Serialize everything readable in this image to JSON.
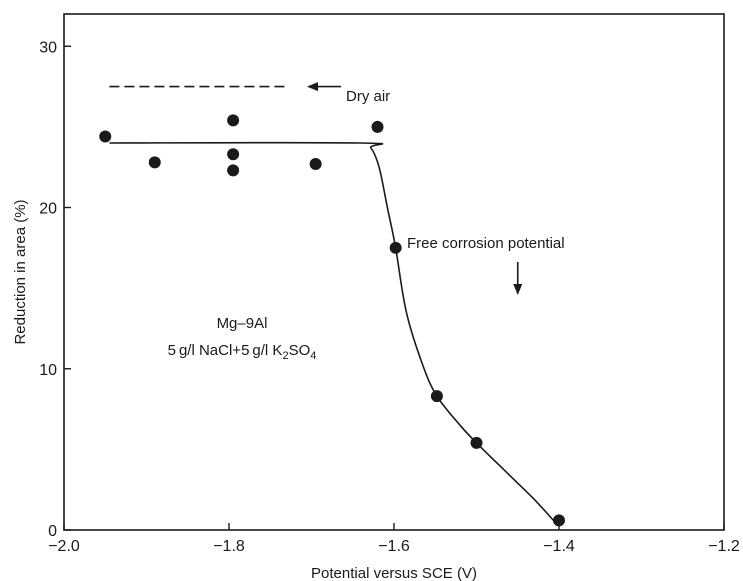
{
  "chart_data": {
    "type": "scatter",
    "xlabel": "Potential versus SCE (V)",
    "ylabel": "Reduction in area (%)",
    "xlim": [
      -2.0,
      -1.2
    ],
    "ylim": [
      0,
      32
    ],
    "x_ticks": [
      -2.0,
      -1.8,
      -1.6,
      -1.4,
      -1.2
    ],
    "x_tick_labels": [
      "−2.0",
      "−1.8",
      "−1.6",
      "−1.4",
      "−1.2"
    ],
    "y_ticks": [
      0,
      10,
      20,
      30
    ],
    "y_tick_labels": [
      "0",
      "10",
      "20",
      "30"
    ],
    "grid": false,
    "points": [
      {
        "x": -1.95,
        "y": 24.4
      },
      {
        "x": -1.89,
        "y": 22.8
      },
      {
        "x": -1.795,
        "y": 25.4
      },
      {
        "x": -1.795,
        "y": 23.3
      },
      {
        "x": -1.795,
        "y": 22.3
      },
      {
        "x": -1.695,
        "y": 22.7
      },
      {
        "x": -1.62,
        "y": 25.0
      },
      {
        "x": -1.598,
        "y": 17.5
      },
      {
        "x": -1.548,
        "y": 8.3
      },
      {
        "x": -1.5,
        "y": 5.4
      },
      {
        "x": -1.4,
        "y": 0.6
      }
    ],
    "fit_curve": [
      {
        "x": -1.945,
        "y": 24.0
      },
      {
        "x": -1.64,
        "y": 24.0
      },
      {
        "x": -1.628,
        "y": 23.7
      },
      {
        "x": -1.618,
        "y": 22.5
      },
      {
        "x": -1.608,
        "y": 20.0
      },
      {
        "x": -1.598,
        "y": 17.5
      },
      {
        "x": -1.585,
        "y": 13.5
      },
      {
        "x": -1.565,
        "y": 10.2
      },
      {
        "x": -1.548,
        "y": 8.3
      },
      {
        "x": -1.52,
        "y": 6.5
      },
      {
        "x": -1.5,
        "y": 5.4
      },
      {
        "x": -1.46,
        "y": 3.4
      },
      {
        "x": -1.43,
        "y": 1.9
      },
      {
        "x": -1.405,
        "y": 0.5
      }
    ],
    "reference_line": {
      "label": "Dry air",
      "y": 27.5,
      "x_start": -1.945,
      "x_end": -1.73
    },
    "annotations": {
      "free_corrosion": {
        "label": "Free corrosion potential",
        "x": -1.45
      },
      "material": "Mg–9Al",
      "solution_prefix": "5 g/l NaCl+5 g/l K",
      "solution_sub1": "2",
      "solution_mid": "SO",
      "solution_sub2": "4"
    },
    "colors": {
      "ink": "#1a1a1a",
      "background": "#ffffff"
    }
  }
}
